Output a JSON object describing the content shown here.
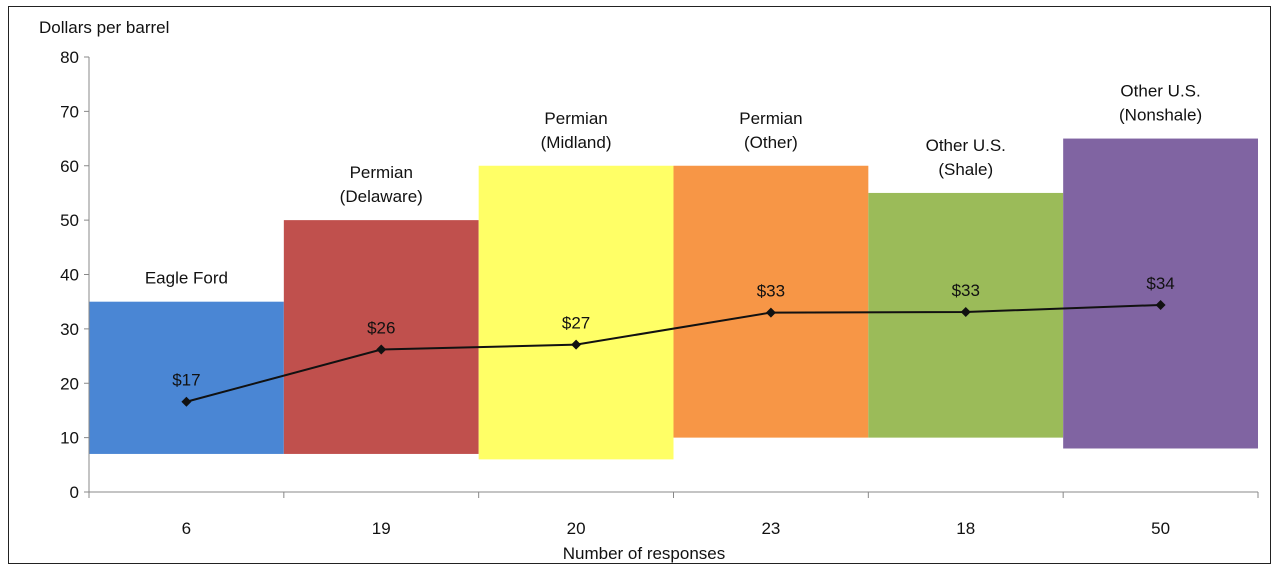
{
  "chart_data": {
    "type": "bar",
    "ylabel": "Dollars per barrel",
    "xlabel": "Number of responses",
    "ylim": [
      0,
      80
    ],
    "yticks": [
      0,
      10,
      20,
      30,
      40,
      50,
      60,
      70,
      80
    ],
    "grid": false,
    "categories": [
      "6",
      "19",
      "20",
      "23",
      "18",
      "50"
    ],
    "ranges": {
      "name": "",
      "items": [
        {
          "region": [
            "Eagle Ford"
          ],
          "low": 7,
          "high": 35,
          "color": "#4a86d4"
        },
        {
          "region": [
            "Permian",
            "(Delaware)"
          ],
          "low": 7,
          "high": 50,
          "color": "#c0504d"
        },
        {
          "region": [
            "Permian",
            "(Midland)"
          ],
          "low": 6,
          "high": 60,
          "color": "#ffff66"
        },
        {
          "region": [
            "Permian",
            "(Other)"
          ],
          "low": 10,
          "high": 60,
          "color": "#f79646"
        },
        {
          "region": [
            "Other U.S.",
            "(Shale)"
          ],
          "low": 10,
          "high": 55,
          "color": "#9bbb59"
        },
        {
          "region": [
            "Other U.S.",
            "(Nonshale)"
          ],
          "low": 8,
          "high": 65,
          "color": "#8064a2"
        }
      ]
    },
    "line": {
      "name": "",
      "values": [
        16.6,
        26.2,
        27.1,
        33.0,
        33.1,
        34.4
      ],
      "labels": [
        "$17",
        "$26",
        "$27",
        "$33",
        "$33",
        "$34"
      ],
      "color": "#111111",
      "marker": "diamond"
    }
  }
}
